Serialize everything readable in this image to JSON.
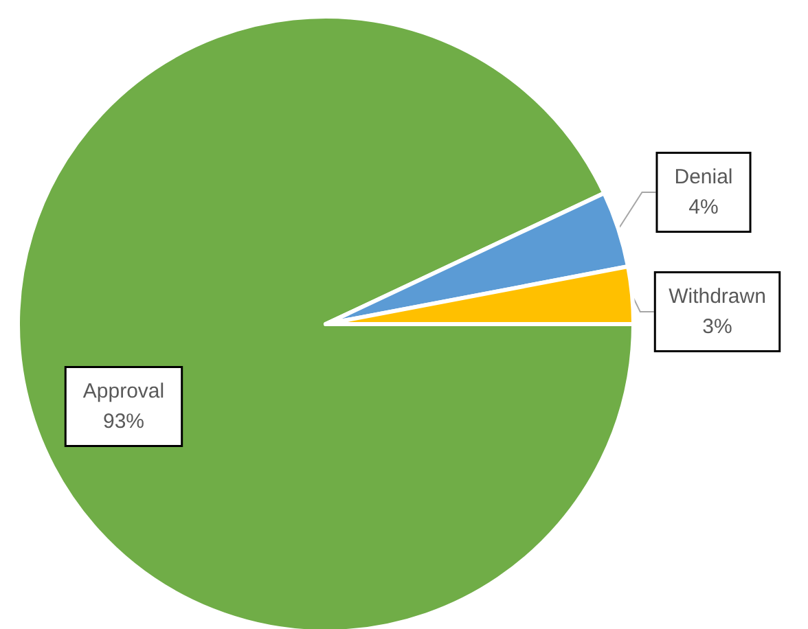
{
  "chart_data": {
    "type": "pie",
    "categories": [
      "Approval",
      "Denial",
      "Withdrawn"
    ],
    "values": [
      93,
      4,
      3
    ],
    "colors": [
      "#70ad47",
      "#5b9bd5",
      "#ffc000"
    ],
    "value_labels": [
      "93%",
      "4%",
      "3%"
    ],
    "legend": false
  }
}
